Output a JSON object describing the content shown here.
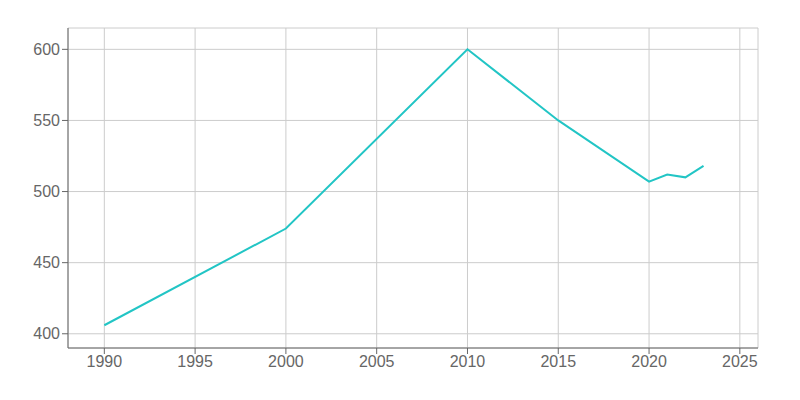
{
  "chart_data": {
    "type": "line",
    "x": [
      1990,
      2000,
      2010,
      2015,
      2020,
      2021,
      2022,
      2023
    ],
    "values": [
      406,
      474,
      600,
      550,
      507,
      512,
      510,
      518
    ],
    "color": "#22c5c5",
    "xlim": [
      1988,
      2026
    ],
    "ylim": [
      390,
      615
    ],
    "xticks": [
      1990,
      1995,
      2000,
      2005,
      2010,
      2015,
      2020,
      2025
    ],
    "yticks": [
      400,
      450,
      500,
      550,
      600
    ],
    "grid": true
  }
}
